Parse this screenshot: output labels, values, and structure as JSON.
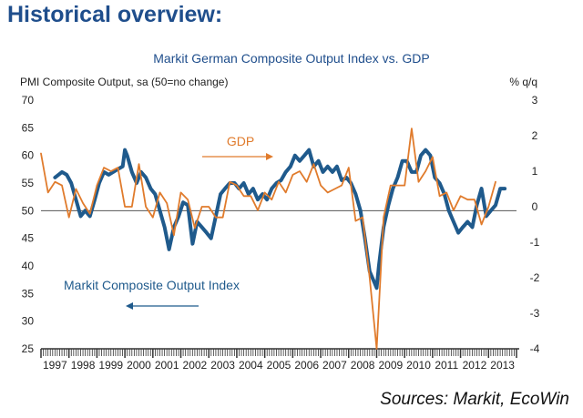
{
  "heading": "Historical overview:",
  "footer": {
    "sources": "Sources: Markit, EcoWin"
  },
  "colors": {
    "pmi": "#1f5a8c",
    "gdp": "#e07b2c",
    "title": "#1f4e8c"
  },
  "chart_data": {
    "type": "line",
    "title": "Markit German Composite Output Index vs. GDP",
    "ylabel_left": "PMI Composite Output, sa (50=no change)",
    "ylabel_right": "% q/q",
    "xlim": [
      1997,
      2014
    ],
    "ylim_left": [
      25,
      70
    ],
    "ylim_right": [
      -4,
      3
    ],
    "yticks_left": [
      25,
      30,
      35,
      40,
      45,
      50,
      55,
      60,
      65,
      70
    ],
    "yticks_right": [
      -4,
      -3,
      -2,
      -1,
      0,
      1,
      2,
      3
    ],
    "xtick_labels": [
      "1997",
      "1998",
      "1999",
      "2000",
      "2001",
      "2002",
      "2003",
      "2004",
      "2005",
      "2006",
      "2007",
      "2008",
      "2009",
      "2010",
      "2011",
      "2012",
      "2013"
    ],
    "reference_line_left": 50,
    "grid": false,
    "annotations": [
      {
        "text": "GDP",
        "arrow": "right"
      },
      {
        "text": "Markit Composite Output Index",
        "arrow": "left"
      }
    ],
    "series": [
      {
        "name": "Markit Composite Output Index",
        "axis": "left",
        "color": "#1f5a8c",
        "x": [
          1997.5,
          1997.75,
          1997.92,
          1998.08,
          1998.25,
          1998.42,
          1998.58,
          1998.75,
          1998.92,
          1999.08,
          1999.25,
          1999.42,
          1999.58,
          1999.75,
          1999.92,
          2000.0,
          2000.08,
          2000.25,
          2000.42,
          2000.58,
          2000.75,
          2000.92,
          2001.08,
          2001.25,
          2001.42,
          2001.58,
          2001.75,
          2001.92,
          2002.08,
          2002.25,
          2002.42,
          2002.5,
          2002.58,
          2002.75,
          2002.92,
          2003.08,
          2003.25,
          2003.42,
          2003.58,
          2003.75,
          2003.92,
          2004.08,
          2004.25,
          2004.42,
          2004.58,
          2004.75,
          2004.92,
          2005.08,
          2005.25,
          2005.42,
          2005.58,
          2005.75,
          2005.92,
          2006.08,
          2006.25,
          2006.42,
          2006.58,
          2006.75,
          2006.92,
          2007.08,
          2007.25,
          2007.42,
          2007.58,
          2007.75,
          2007.92,
          2008.08,
          2008.25,
          2008.42,
          2008.58,
          2008.75,
          2008.92,
          2009.0,
          2009.08,
          2009.25,
          2009.42,
          2009.58,
          2009.75,
          2009.92,
          2010.08,
          2010.25,
          2010.42,
          2010.58,
          2010.75,
          2010.92,
          2011.08,
          2011.25,
          2011.42,
          2011.58,
          2011.75,
          2011.92,
          2012.08,
          2012.25,
          2012.42,
          2012.58,
          2012.75,
          2012.92,
          2013.08,
          2013.25,
          2013.42,
          2013.58
        ],
        "y": [
          56,
          57,
          56.5,
          55,
          52,
          49,
          50,
          49,
          52,
          55,
          57,
          56.5,
          57,
          57.5,
          58,
          61,
          60,
          57,
          55,
          57,
          56,
          54,
          53,
          50,
          47,
          43,
          47,
          49,
          51.5,
          51,
          44,
          46,
          48,
          47,
          46,
          45,
          49,
          53,
          54,
          55,
          55,
          54,
          55,
          53,
          54,
          52,
          53,
          52,
          54,
          55,
          55.5,
          57,
          58,
          60,
          59,
          60,
          61,
          58,
          59,
          57,
          58,
          57,
          58,
          55.5,
          56,
          55,
          53,
          50,
          45,
          39,
          37,
          36,
          40,
          47,
          51,
          54,
          56,
          59,
          59,
          57,
          57,
          60,
          61,
          60,
          56,
          55,
          53,
          50,
          48,
          46,
          47,
          48,
          47,
          51,
          54,
          49,
          50,
          51,
          54,
          54
        ]
      },
      {
        "name": "GDP",
        "axis": "right",
        "color": "#e07b2c",
        "x": [
          1997.0,
          1997.25,
          1997.5,
          1997.75,
          1998.0,
          1998.25,
          1998.5,
          1998.75,
          1999.0,
          1999.25,
          1999.5,
          1999.75,
          2000.0,
          2000.25,
          2000.5,
          2000.75,
          2001.0,
          2001.25,
          2001.5,
          2001.75,
          2002.0,
          2002.25,
          2002.5,
          2002.75,
          2003.0,
          2003.25,
          2003.5,
          2003.75,
          2004.0,
          2004.25,
          2004.5,
          2004.75,
          2005.0,
          2005.25,
          2005.5,
          2005.75,
          2006.0,
          2006.25,
          2006.5,
          2006.75,
          2007.0,
          2007.25,
          2007.5,
          2007.75,
          2008.0,
          2008.25,
          2008.5,
          2008.75,
          2009.0,
          2009.25,
          2009.5,
          2009.75,
          2010.0,
          2010.25,
          2010.5,
          2010.75,
          2011.0,
          2011.25,
          2011.5,
          2011.75,
          2012.0,
          2012.25,
          2012.5,
          2012.75,
          2013.0,
          2013.25
        ],
        "y": [
          1.5,
          0.4,
          0.7,
          0.6,
          -0.3,
          0.5,
          0.1,
          -0.2,
          0.6,
          1.1,
          1.0,
          1.1,
          0.0,
          0.0,
          1.2,
          0.0,
          -0.3,
          0.4,
          0.1,
          -0.8,
          0.4,
          0.2,
          -0.6,
          0.0,
          0.0,
          -0.3,
          -0.3,
          0.7,
          0.6,
          0.3,
          0.3,
          -0.1,
          0.4,
          0.2,
          0.7,
          0.4,
          0.9,
          1.0,
          0.7,
          1.2,
          0.6,
          0.4,
          0.5,
          0.6,
          1.1,
          -0.4,
          -0.3,
          -2.0,
          -4.0,
          -0.3,
          0.6,
          0.6,
          0.6,
          2.2,
          0.7,
          1.0,
          1.4,
          0.3,
          0.4,
          -0.1,
          0.3,
          0.2,
          0.2,
          -0.5,
          0.0,
          0.7
        ]
      }
    ]
  }
}
